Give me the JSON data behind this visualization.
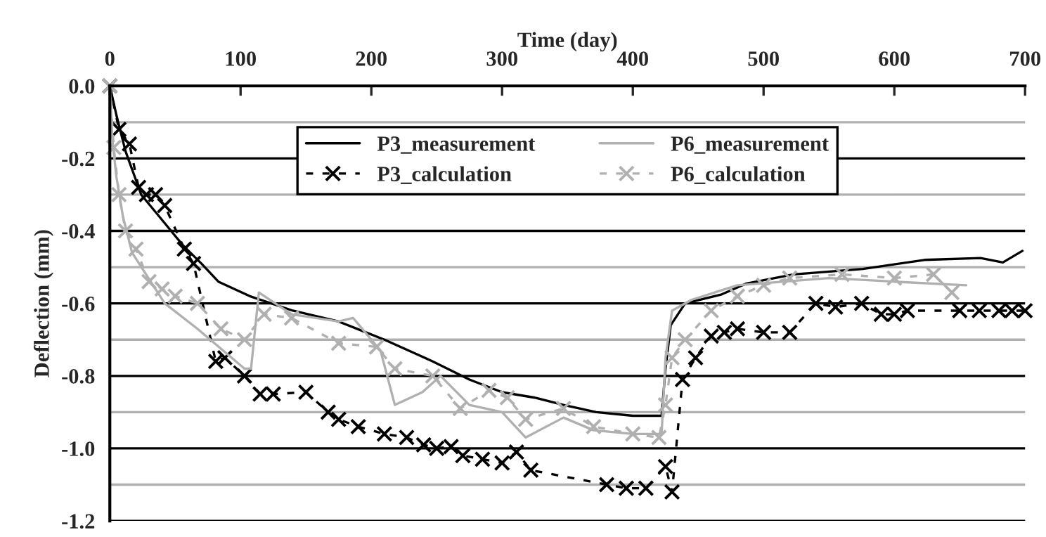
{
  "chart_data": {
    "type": "line",
    "xlabel": "Time (day)",
    "ylabel": "Deflection (mm)",
    "xlim": [
      0,
      700
    ],
    "xticks": [
      0,
      100,
      200,
      300,
      400,
      500,
      600,
      700
    ],
    "ylim": [
      -1.2,
      0.0
    ],
    "yticks": [
      {
        "value": -1.2,
        "label": "-1.2"
      },
      {
        "value": -1.0,
        "label": "-1.0"
      },
      {
        "value": -0.8,
        "label": "-0.8"
      },
      {
        "value": -0.6,
        "label": "-0.6"
      },
      {
        "value": -0.4,
        "label": "-0.4"
      },
      {
        "value": -0.2,
        "label": "-0.2"
      },
      {
        "value": 0.0,
        "label": "0.0"
      }
    ],
    "grid": "y",
    "legend": "top",
    "series": [
      {
        "name": "P3_measurement",
        "color": "#000000",
        "marker": "none",
        "line_style": "solid",
        "x": [
          0,
          5,
          12,
          24,
          40,
          56,
          70,
          83,
          107,
          140,
          175,
          210,
          247,
          275,
          300,
          325,
          347,
          372,
          400,
          422,
          425,
          429,
          440,
          468,
          487,
          523,
          576,
          623,
          666,
          683,
          698
        ],
        "values": [
          0,
          -0.08,
          -0.18,
          -0.3,
          -0.37,
          -0.44,
          -0.49,
          -0.54,
          -0.58,
          -0.62,
          -0.65,
          -0.7,
          -0.76,
          -0.81,
          -0.845,
          -0.86,
          -0.88,
          -0.9,
          -0.91,
          -0.91,
          -0.78,
          -0.66,
          -0.6,
          -0.575,
          -0.545,
          -0.52,
          -0.505,
          -0.48,
          -0.475,
          -0.487,
          -0.455
        ]
      },
      {
        "name": "P3_calculation",
        "color": "#000000",
        "marker": "cross",
        "line_style": "dashed",
        "x": [
          0,
          7,
          15,
          22,
          28,
          35,
          42,
          57,
          64,
          81,
          88,
          103,
          115,
          125,
          150,
          167,
          175,
          190,
          210,
          227,
          240,
          250,
          261,
          270,
          285,
          300,
          311,
          322,
          380,
          395,
          410,
          425,
          430,
          438,
          448,
          460,
          470,
          480,
          500,
          520,
          540,
          555,
          575,
          590,
          600,
          610,
          650,
          665,
          680,
          690,
          700
        ],
        "values": [
          0,
          -0.12,
          -0.16,
          -0.28,
          -0.3,
          -0.3,
          -0.33,
          -0.45,
          -0.49,
          -0.76,
          -0.75,
          -0.8,
          -0.85,
          -0.85,
          -0.845,
          -0.9,
          -0.92,
          -0.94,
          -0.96,
          -0.97,
          -0.99,
          -1.0,
          -0.995,
          -1.02,
          -1.03,
          -1.04,
          -1.01,
          -1.06,
          -1.1,
          -1.11,
          -1.11,
          -1.05,
          -1.12,
          -0.81,
          -0.75,
          -0.69,
          -0.68,
          -0.67,
          -0.68,
          -0.68,
          -0.6,
          -0.61,
          -0.6,
          -0.63,
          -0.63,
          -0.62,
          -0.62,
          -0.62,
          -0.62,
          -0.62,
          -0.62
        ]
      },
      {
        "name": "P6_measurement",
        "color": "#b0b0b0",
        "marker": "none",
        "line_style": "solid",
        "x": [
          0,
          2,
          5,
          10,
          17,
          42,
          67,
          103,
          108,
          114,
          139,
          175,
          186,
          207,
          218,
          239,
          253,
          275,
          300,
          318,
          347,
          370,
          400,
          422,
          425,
          430,
          445,
          480,
          550,
          600,
          655
        ],
        "values": [
          0,
          -0.15,
          -0.25,
          -0.36,
          -0.46,
          -0.6,
          -0.67,
          -0.78,
          -0.78,
          -0.57,
          -0.63,
          -0.65,
          -0.64,
          -0.73,
          -0.88,
          -0.845,
          -0.8,
          -0.88,
          -0.9,
          -0.97,
          -0.915,
          -0.95,
          -0.96,
          -0.96,
          -0.75,
          -0.62,
          -0.59,
          -0.55,
          -0.53,
          -0.54,
          -0.55
        ]
      },
      {
        "name": "P6_calculation",
        "color": "#b0b0b0",
        "marker": "cross",
        "line_style": "dashed",
        "x": [
          0,
          3,
          7,
          12,
          20,
          30,
          40,
          50,
          67,
          85,
          103,
          118,
          139,
          175,
          204,
          218,
          247,
          268,
          290,
          304,
          318,
          347,
          370,
          400,
          420,
          425,
          430,
          440,
          460,
          480,
          500,
          520,
          560,
          600,
          630,
          644
        ],
        "values": [
          0,
          -0.17,
          -0.3,
          -0.4,
          -0.45,
          -0.54,
          -0.56,
          -0.58,
          -0.6,
          -0.67,
          -0.7,
          -0.63,
          -0.64,
          -0.71,
          -0.72,
          -0.78,
          -0.8,
          -0.89,
          -0.84,
          -0.86,
          -0.92,
          -0.89,
          -0.94,
          -0.96,
          -0.97,
          -0.88,
          -0.75,
          -0.7,
          -0.62,
          -0.58,
          -0.55,
          -0.53,
          -0.52,
          -0.53,
          -0.52,
          -0.57
        ]
      }
    ]
  }
}
